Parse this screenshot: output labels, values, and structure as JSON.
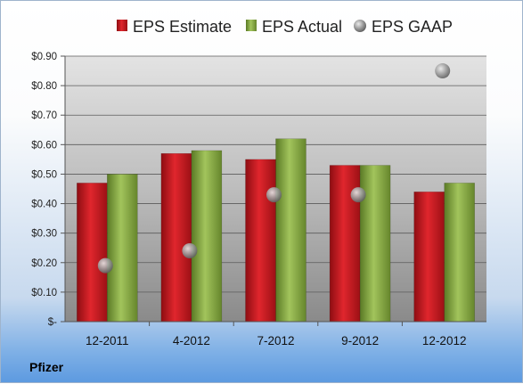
{
  "company_label": "Pfizer",
  "chart_data": {
    "type": "bar",
    "categories": [
      "12-2011",
      "4-2012",
      "7-2012",
      "9-2012",
      "12-2012"
    ],
    "series": [
      {
        "name": "EPS Estimate",
        "kind": "bar",
        "color": "#c0141b",
        "values": [
          0.47,
          0.57,
          0.55,
          0.53,
          0.44
        ]
      },
      {
        "name": "EPS Actual",
        "kind": "bar",
        "color": "#7da23a",
        "values": [
          0.5,
          0.58,
          0.62,
          0.53,
          0.47
        ]
      },
      {
        "name": "EPS GAAP",
        "kind": "marker",
        "color": "#8e8e8e",
        "values": [
          0.19,
          0.24,
          0.43,
          0.43,
          0.85
        ]
      }
    ],
    "ylim": [
      0,
      0.9
    ],
    "yticks": [
      0,
      0.1,
      0.2,
      0.3,
      0.4,
      0.5,
      0.6,
      0.7,
      0.8,
      0.9
    ],
    "ytick_labels": [
      "$-",
      "$0.10",
      "$0.20",
      "$0.30",
      "$0.40",
      "$0.50",
      "$0.60",
      "$0.70",
      "$0.80",
      "$0.90"
    ],
    "grid": true,
    "legend": "top"
  }
}
